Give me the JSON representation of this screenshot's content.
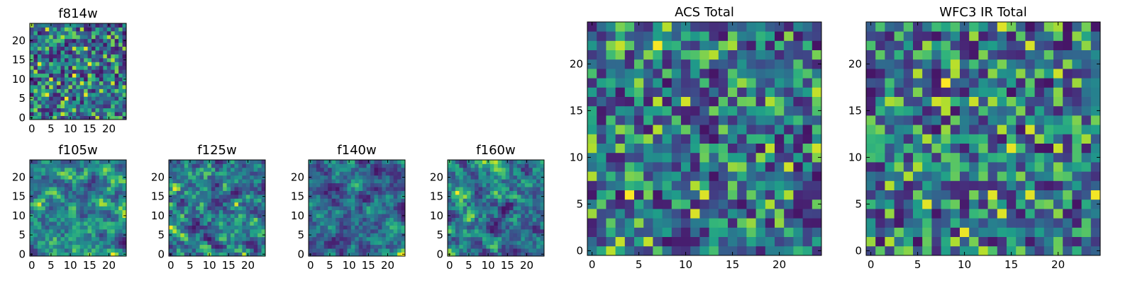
{
  "figure": {
    "colormap": "viridis"
  },
  "chart_data": [
    {
      "type": "heatmap",
      "title": "f814w",
      "grid": 25,
      "seed": 814,
      "smooth": 0,
      "xticks": [
        0,
        5,
        10,
        15,
        20
      ],
      "yticks": [
        0,
        5,
        10,
        15,
        20
      ],
      "xlim": [
        -0.5,
        24.5
      ],
      "ylim": [
        -0.5,
        24.5
      ]
    },
    {
      "type": "heatmap",
      "title": "f105w",
      "grid": 25,
      "seed": 105,
      "smooth": 2,
      "xticks": [
        0,
        5,
        10,
        15,
        20
      ],
      "yticks": [
        0,
        5,
        10,
        15,
        20
      ],
      "xlim": [
        -0.5,
        24.5
      ],
      "ylim": [
        -0.5,
        24.5
      ]
    },
    {
      "type": "heatmap",
      "title": "f125w",
      "grid": 25,
      "seed": 125,
      "smooth": 2,
      "xticks": [
        0,
        5,
        10,
        15,
        20
      ],
      "yticks": [
        0,
        5,
        10,
        15,
        20
      ],
      "xlim": [
        -0.5,
        24.5
      ],
      "ylim": [
        -0.5,
        24.5
      ]
    },
    {
      "type": "heatmap",
      "title": "f140w",
      "grid": 25,
      "seed": 140,
      "smooth": 2,
      "xticks": [
        0,
        5,
        10,
        15,
        20
      ],
      "yticks": [
        0,
        5,
        10,
        15,
        20
      ],
      "xlim": [
        -0.5,
        24.5
      ],
      "ylim": [
        -0.5,
        24.5
      ]
    },
    {
      "type": "heatmap",
      "title": "f160w",
      "grid": 25,
      "seed": 160,
      "smooth": 2,
      "xticks": [
        0,
        5,
        10,
        15,
        20
      ],
      "yticks": [
        0,
        5,
        10,
        15,
        20
      ],
      "xlim": [
        -0.5,
        24.5
      ],
      "ylim": [
        -0.5,
        24.5
      ]
    },
    {
      "type": "heatmap",
      "title": "ACS Total",
      "grid": 25,
      "seed": 7,
      "smooth": 0,
      "xticks": [
        0,
        5,
        10,
        15,
        20
      ],
      "yticks": [
        0,
        5,
        10,
        15,
        20
      ],
      "xlim": [
        -0.5,
        24.5
      ],
      "ylim": [
        -0.5,
        24.5
      ]
    },
    {
      "type": "heatmap",
      "title": "WFC3 IR Total",
      "grid": 25,
      "seed": 3,
      "smooth": 0,
      "xticks": [
        0,
        5,
        10,
        15,
        20
      ],
      "yticks": [
        0,
        5,
        10,
        15,
        20
      ],
      "xlim": [
        -0.5,
        24.5
      ],
      "ylim": [
        -0.5,
        24.5
      ]
    }
  ]
}
